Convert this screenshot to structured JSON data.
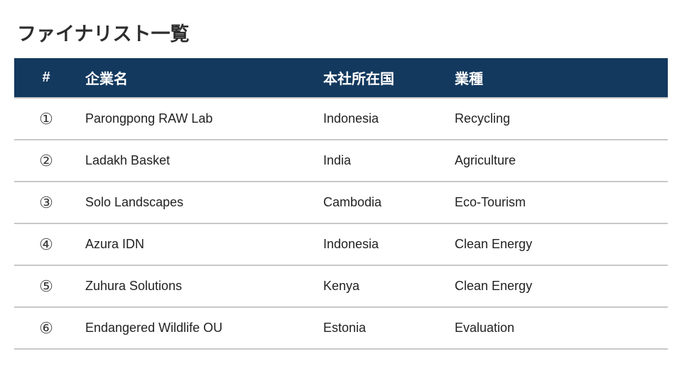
{
  "slide": {
    "title": "ファイナリスト一覧"
  },
  "colors": {
    "accent_navy": "#13395E",
    "row_border": "#C8C8C8",
    "title_text": "#2D2D2D",
    "body_text": "#222222",
    "header_text": "#FFFFFF"
  },
  "table": {
    "headers": {
      "num": "#",
      "company": "企業名",
      "country": "本社所在国",
      "industry": "業種"
    },
    "rows": [
      {
        "num": "①",
        "company": "Parongpong RAW Lab",
        "country": "Indonesia",
        "industry": "Recycling"
      },
      {
        "num": "②",
        "company": "Ladakh Basket",
        "country": "India",
        "industry": "Agriculture"
      },
      {
        "num": "③",
        "company": "Solo Landscapes",
        "country": "Cambodia",
        "industry": "Eco-Tourism"
      },
      {
        "num": "④",
        "company": "Azura IDN",
        "country": "Indonesia",
        "industry": "Clean Energy"
      },
      {
        "num": "⑤",
        "company": "Zuhura Solutions",
        "country": "Kenya",
        "industry": "Clean Energy"
      },
      {
        "num": "⑥",
        "company": "Endangered Wildlife OU",
        "country": "Estonia",
        "industry": "Evaluation"
      }
    ]
  }
}
